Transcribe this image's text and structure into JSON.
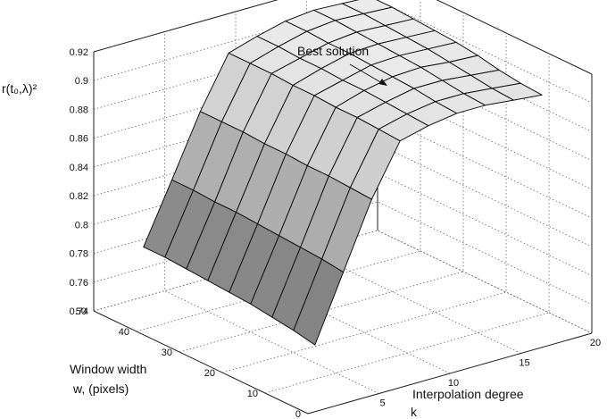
{
  "chart_data": {
    "type": "surface",
    "title": "",
    "zlabel": "r(t₀,λ)²",
    "xlabel_line1": "Interpolation degree",
    "xlabel_line2": "k",
    "ylabel_line1": "Window width",
    "ylabel_line2": "w, (pixels)",
    "annotation": "Best solution",
    "xlim": [
      0,
      20
    ],
    "ylim": [
      0,
      50
    ],
    "zlim": [
      0.74,
      0.92
    ],
    "x_ticks": [
      0,
      5,
      10,
      15,
      20
    ],
    "y_ticks": [
      0,
      10,
      20,
      30,
      40,
      50
    ],
    "z_ticks": [
      0.74,
      0.76,
      0.78,
      0.8,
      0.82,
      0.84,
      0.86,
      0.88,
      0.9,
      0.92
    ],
    "x_tick_labels": [
      "0",
      "5",
      "10",
      "15",
      "20"
    ],
    "y_tick_labels": [
      "0",
      "10",
      "20",
      "30",
      "40",
      "50"
    ],
    "z_tick_labels": [
      "0.74",
      "0.76",
      "0.78",
      "0.8",
      "0.82",
      "0.84",
      "0.86",
      "0.88",
      "0.9",
      "0.92"
    ],
    "k_values": [
      2,
      4,
      6,
      8,
      10,
      12,
      14,
      16,
      18
    ],
    "w_values": [
      5,
      10,
      15,
      20,
      25,
      30,
      35,
      40,
      45
    ],
    "z_grid": [
      [
        0.775,
        0.82,
        0.865,
        0.9,
        0.905,
        0.908,
        0.908,
        0.906,
        0.904
      ],
      [
        0.778,
        0.822,
        0.866,
        0.901,
        0.906,
        0.909,
        0.909,
        0.907,
        0.905
      ],
      [
        0.78,
        0.823,
        0.867,
        0.902,
        0.907,
        0.911,
        0.911,
        0.909,
        0.907
      ],
      [
        0.782,
        0.824,
        0.867,
        0.902,
        0.908,
        0.912,
        0.913,
        0.911,
        0.91
      ],
      [
        0.783,
        0.825,
        0.868,
        0.903,
        0.908,
        0.913,
        0.914,
        0.913,
        0.912
      ],
      [
        0.784,
        0.826,
        0.868,
        0.903,
        0.909,
        0.914,
        0.915,
        0.914,
        0.913
      ],
      [
        0.785,
        0.826,
        0.869,
        0.904,
        0.909,
        0.914,
        0.916,
        0.915,
        0.914
      ],
      [
        0.786,
        0.827,
        0.869,
        0.904,
        0.91,
        0.915,
        0.917,
        0.916,
        0.915
      ],
      [
        0.786,
        0.827,
        0.869,
        0.904,
        0.91,
        0.915,
        0.917,
        0.916,
        0.915
      ]
    ],
    "best_point": {
      "k": 14,
      "w": 35,
      "z": 0.916
    },
    "grid": true
  }
}
